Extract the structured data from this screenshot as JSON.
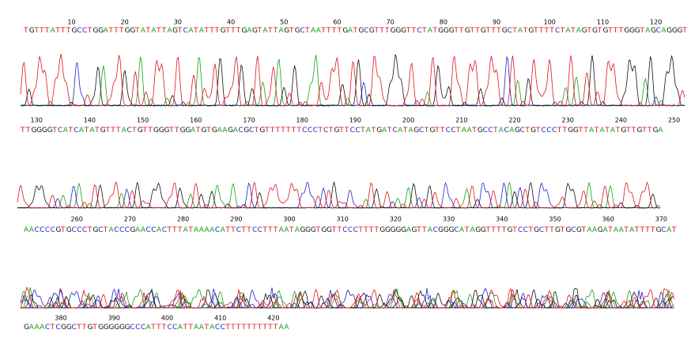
{
  "rows": [
    {
      "positions": [
        10,
        20,
        30,
        40,
        50,
        60,
        70,
        80,
        90,
        100,
        110,
        120
      ],
      "sequence": "TGTTTATTTGCCTGGATTTGGTATATTAGTCATATTTGTTTGAGTATTAGTGCTAATTTTGATGCGTTTGGGTTCTATGGGTTGTTGTTTGCTATGTTTTCTATAGTGTGTTTGGGTAGCAGGGT"
    },
    {
      "positions": [
        130,
        140,
        150,
        160,
        170,
        180,
        190,
        200,
        210,
        220,
        230,
        240,
        250
      ],
      "sequence": "TTGGGGTCATCATATGTTTACTGTTGGGTTGGATGTGAAGACGCTGTTTTTTTCCCTCTGTTCCTATGATCATAGCTGTTCCTAATGCCTACAGCTGTCCCTTGGTTATATATGTTGTTGA"
    },
    {
      "positions": [
        260,
        270,
        280,
        290,
        300,
        310,
        320,
        330,
        340,
        350,
        360,
        370
      ],
      "sequence": "AACCCCGTGCCCTGCTACCCGAACCACTTTATAAAACATTCTTCCTTTAATAGGGTGGTTCCCTTTTGGGGGAGTTACGGGCATAGGTTTTGTCCTGCTTGTGCGTAAGATAATATTTTGCAT"
    },
    {
      "positions": [
        380,
        390,
        400,
        410,
        420
      ],
      "sequence": "GAAACTCGGCTTGTGGGGGGCCCATTTCCATTAATACCTTTTTTTTTTAA"
    }
  ]
}
